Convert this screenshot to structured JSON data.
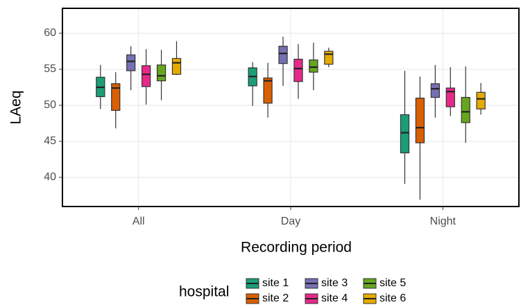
{
  "chart_data": {
    "type": "boxplot",
    "x_label": "Recording period",
    "y_label": "LAeq",
    "legend_title": "hospital",
    "legend": "bottom",
    "grid": true,
    "categories": [
      "All",
      "Day",
      "Night"
    ],
    "ylim": [
      35.96,
      63.46
    ],
    "yticks": [
      40,
      45,
      50,
      55,
      60
    ],
    "series": [
      {
        "name": "site 1",
        "color": "#1b9e77",
        "values": [
          [
            49.5,
            51.2,
            52.5,
            53.9,
            55.6
          ],
          [
            49.9,
            52.7,
            54.0,
            55.2,
            56.0
          ],
          [
            39.1,
            43.4,
            46.2,
            48.7,
            54.8
          ]
        ]
      },
      {
        "name": "site 2",
        "color": "#d95f02",
        "values": [
          [
            46.8,
            49.3,
            52.4,
            53.0,
            54.6
          ],
          [
            48.3,
            50.3,
            53.4,
            53.8,
            55.9
          ],
          [
            36.9,
            44.8,
            46.9,
            51.0,
            54.0
          ]
        ]
      },
      {
        "name": "site 3",
        "color": "#7570b3",
        "values": [
          [
            52.1,
            54.8,
            56.1,
            57.0,
            58.2
          ],
          [
            52.7,
            55.8,
            57.2,
            58.2,
            59.5
          ],
          [
            48.3,
            51.1,
            52.3,
            53.0,
            55.6
          ]
        ]
      },
      {
        "name": "site 4",
        "color": "#e7298a",
        "values": [
          [
            50.1,
            52.6,
            54.3,
            55.5,
            57.8
          ],
          [
            50.9,
            53.3,
            55.1,
            56.4,
            58.5
          ],
          [
            48.5,
            49.8,
            51.9,
            52.4,
            55.3
          ]
        ]
      },
      {
        "name": "site 5",
        "color": "#66a61e",
        "values": [
          [
            50.7,
            53.4,
            54.1,
            55.6,
            57.7
          ],
          [
            52.1,
            54.6,
            55.3,
            56.3,
            58.7
          ],
          [
            44.8,
            47.6,
            49.1,
            51.1,
            55.4
          ]
        ]
      },
      {
        "name": "site 6",
        "color": "#e6ab02",
        "values": [
          [
            54.2,
            54.3,
            55.9,
            56.5,
            58.9
          ],
          [
            55.3,
            55.7,
            57.1,
            57.5,
            58.0
          ],
          [
            48.7,
            49.5,
            50.9,
            51.8,
            53.1
          ]
        ]
      }
    ]
  }
}
